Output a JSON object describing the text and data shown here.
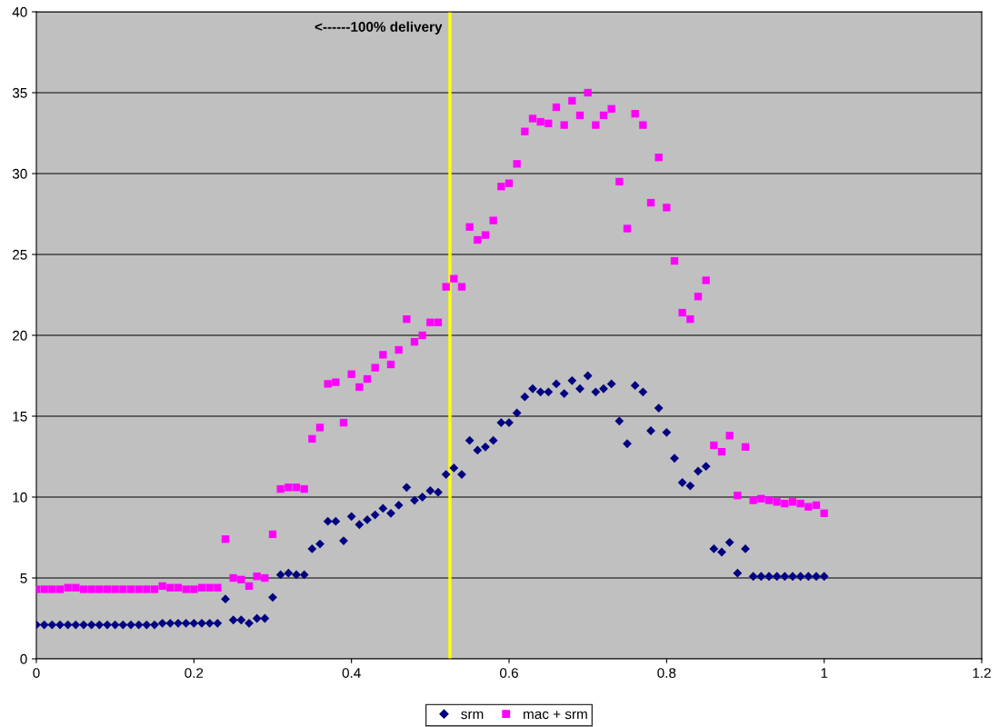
{
  "chart_data": {
    "type": "scatter",
    "x": [
      0,
      0.01,
      0.02,
      0.03,
      0.04,
      0.05,
      0.06,
      0.07,
      0.08,
      0.09,
      0.1,
      0.11,
      0.12,
      0.13,
      0.14,
      0.15,
      0.16,
      0.17,
      0.18,
      0.19,
      0.2,
      0.21,
      0.22,
      0.23,
      0.24,
      0.25,
      0.26,
      0.27,
      0.28,
      0.29,
      0.3,
      0.31,
      0.32,
      0.33,
      0.34,
      0.35,
      0.36,
      0.37,
      0.38,
      0.39,
      0.4,
      0.41,
      0.42,
      0.43,
      0.44,
      0.45,
      0.46,
      0.47,
      0.48,
      0.49,
      0.5,
      0.51,
      0.52,
      0.53,
      0.54,
      0.55,
      0.56,
      0.57,
      0.58,
      0.59,
      0.6,
      0.61,
      0.62,
      0.63,
      0.64,
      0.65,
      0.66,
      0.67,
      0.68,
      0.69,
      0.7,
      0.71,
      0.72,
      0.73,
      0.74,
      0.75,
      0.76,
      0.77,
      0.78,
      0.79,
      0.8,
      0.81,
      0.82,
      0.83,
      0.84,
      0.85,
      0.86,
      0.87,
      0.88,
      0.89,
      0.9,
      0.91,
      0.92,
      0.93,
      0.94,
      0.95,
      0.96,
      0.97,
      0.98,
      0.99,
      1
    ],
    "series": [
      {
        "name": "srm",
        "color": "#000080",
        "marker": "diamond",
        "values": [
          2.1,
          2.1,
          2.1,
          2.1,
          2.1,
          2.1,
          2.1,
          2.1,
          2.1,
          2.1,
          2.1,
          2.1,
          2.1,
          2.1,
          2.1,
          2.1,
          2.2,
          2.2,
          2.2,
          2.2,
          2.2,
          2.2,
          2.2,
          2.2,
          3.7,
          2.4,
          2.4,
          2.2,
          2.5,
          2.5,
          3.8,
          5.2,
          5.3,
          5.2,
          5.2,
          6.8,
          7.1,
          8.5,
          8.5,
          7.3,
          8.8,
          8.3,
          8.6,
          8.9,
          9.3,
          9.0,
          9.5,
          10.6,
          9.8,
          10.0,
          10.4,
          10.3,
          11.4,
          11.8,
          11.4,
          13.5,
          12.9,
          13.1,
          13.5,
          14.6,
          14.6,
          15.2,
          16.2,
          16.7,
          16.5,
          16.5,
          17.0,
          16.4,
          17.2,
          16.7,
          17.5,
          16.5,
          16.7,
          17.0,
          14.7,
          13.3,
          16.9,
          16.5,
          14.1,
          15.5,
          14.0,
          12.4,
          10.9,
          10.7,
          11.6,
          11.9,
          6.8,
          6.6,
          7.2,
          5.3,
          6.8,
          5.1,
          5.1,
          5.1,
          5.1,
          5.1,
          5.1,
          5.1,
          5.1,
          5.1,
          5.1
        ]
      },
      {
        "name": "mac + srm",
        "color": "#ff00ff",
        "marker": "square",
        "values": [
          4.3,
          4.3,
          4.3,
          4.3,
          4.4,
          4.4,
          4.3,
          4.3,
          4.3,
          4.3,
          4.3,
          4.3,
          4.3,
          4.3,
          4.3,
          4.3,
          4.5,
          4.4,
          4.4,
          4.3,
          4.3,
          4.4,
          4.4,
          4.4,
          7.4,
          5.0,
          4.9,
          4.5,
          5.1,
          5.0,
          7.7,
          10.5,
          10.6,
          10.6,
          10.5,
          13.6,
          14.3,
          17.0,
          17.1,
          14.6,
          17.6,
          16.8,
          17.3,
          18.0,
          18.8,
          18.2,
          19.1,
          21.0,
          19.6,
          20.0,
          20.8,
          20.8,
          23.0,
          23.5,
          23.0,
          26.7,
          25.9,
          26.2,
          27.1,
          29.2,
          29.4,
          30.6,
          32.6,
          33.4,
          33.2,
          33.1,
          34.1,
          33.0,
          34.5,
          33.6,
          35.0,
          33.0,
          33.6,
          34.0,
          29.5,
          26.6,
          33.7,
          33.0,
          28.2,
          31.0,
          27.9,
          24.6,
          21.4,
          21.0,
          22.4,
          23.4,
          13.2,
          12.8,
          13.8,
          10.1,
          13.1,
          9.8,
          9.9,
          9.8,
          9.7,
          9.6,
          9.7,
          9.6,
          9.4,
          9.5,
          9.0
        ]
      }
    ],
    "xlim": [
      0,
      1.2
    ],
    "xticks": [
      0,
      0.2,
      0.4,
      0.6,
      0.8,
      1,
      1.2
    ],
    "ylim": [
      0,
      40
    ],
    "yticks": [
      0,
      5,
      10,
      15,
      20,
      25,
      30,
      35,
      40
    ],
    "ref_lines": [
      {
        "axis": "x",
        "value": 0.525,
        "label": "<------100% delivery",
        "color": "#ffff00"
      }
    ],
    "grid": "y",
    "legend": "bottom"
  }
}
